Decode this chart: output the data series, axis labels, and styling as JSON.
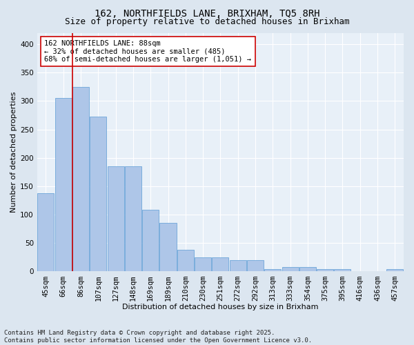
{
  "title": "162, NORTHFIELDS LANE, BRIXHAM, TQ5 8RH",
  "subtitle": "Size of property relative to detached houses in Brixham",
  "xlabel": "Distribution of detached houses by size in Brixham",
  "ylabel": "Number of detached properties",
  "categories": [
    "45sqm",
    "66sqm",
    "86sqm",
    "107sqm",
    "127sqm",
    "148sqm",
    "169sqm",
    "189sqm",
    "210sqm",
    "230sqm",
    "251sqm",
    "272sqm",
    "292sqm",
    "313sqm",
    "333sqm",
    "354sqm",
    "375sqm",
    "395sqm",
    "416sqm",
    "436sqm",
    "457sqm"
  ],
  "values": [
    138,
    305,
    325,
    272,
    185,
    185,
    109,
    85,
    38,
    25,
    25,
    20,
    20,
    4,
    8,
    8,
    4,
    4,
    1,
    1,
    4
  ],
  "bar_color": "#aec6e8",
  "bar_edge_color": "#5b9bd5",
  "vline_color": "#cc0000",
  "annotation_text": "162 NORTHFIELDS LANE: 88sqm\n← 32% of detached houses are smaller (485)\n68% of semi-detached houses are larger (1,051) →",
  "annotation_box_color": "#ffffff",
  "annotation_box_edge": "#cc0000",
  "footer_text": "Contains HM Land Registry data © Crown copyright and database right 2025.\nContains public sector information licensed under the Open Government Licence v3.0.",
  "bg_color": "#dce6f0",
  "plot_bg_color": "#e8f0f8",
  "grid_color": "#ffffff",
  "ylim": [
    0,
    420
  ],
  "yticks": [
    0,
    50,
    100,
    150,
    200,
    250,
    300,
    350,
    400
  ],
  "title_fontsize": 10,
  "subtitle_fontsize": 9,
  "axis_fontsize": 8,
  "tick_fontsize": 7.5,
  "annotation_fontsize": 7.5,
  "footer_fontsize": 6.5
}
